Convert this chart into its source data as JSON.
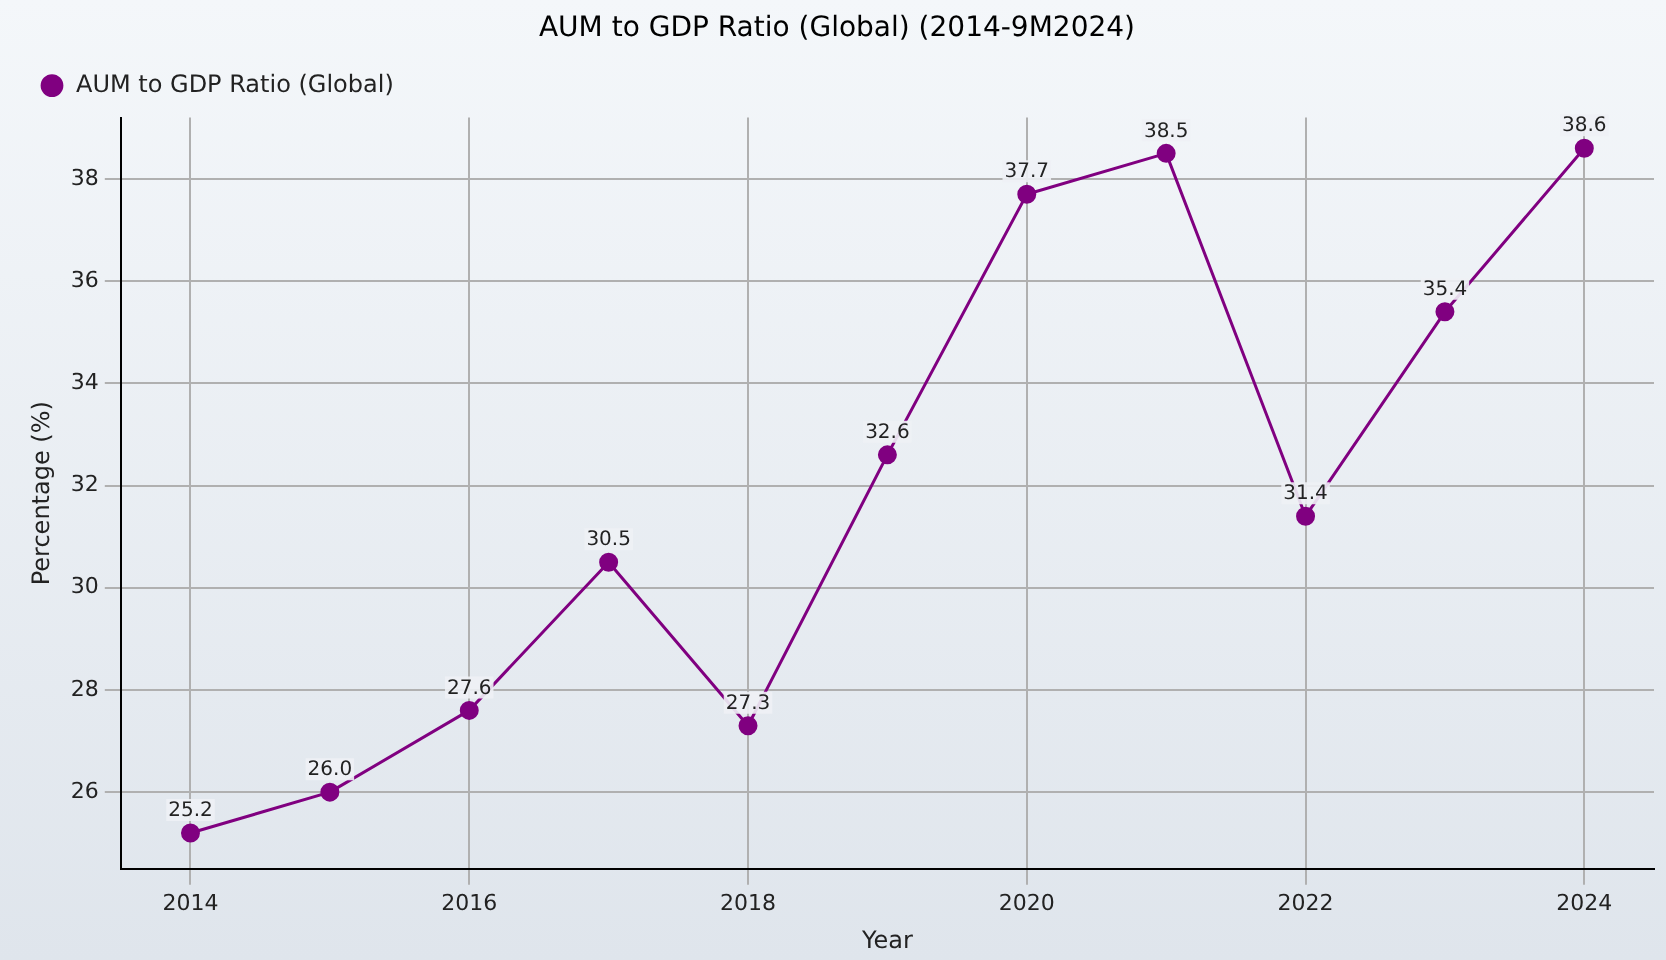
{
  "chart_data": {
    "type": "line",
    "title": "AUM to GDP Ratio (Global) (2014-9M2024)",
    "xlabel": "Year",
    "ylabel": "Percentage (%)",
    "x": [
      2014,
      2015,
      2016,
      2017,
      2018,
      2019,
      2020,
      2021,
      2022,
      2023,
      2024
    ],
    "series": [
      {
        "name": "AUM to GDP Ratio (Global)",
        "color": "#800080",
        "values": [
          25.2,
          26.0,
          27.6,
          30.5,
          27.3,
          32.6,
          37.7,
          38.5,
          31.4,
          35.4,
          38.6
        ],
        "value_labels": [
          "25.2",
          "26.0",
          "27.6",
          "30.5",
          "27.3",
          "32.6",
          "37.7",
          "38.5",
          "31.4",
          "35.4",
          "38.6"
        ]
      }
    ],
    "xlim": [
      2013.5,
      2024.5
    ],
    "xticks": [
      2014,
      2016,
      2018,
      2020,
      2022,
      2024
    ],
    "ylim": [
      24.5,
      39.2
    ],
    "yticks": [
      26,
      28,
      30,
      32,
      34,
      36,
      38
    ],
    "grid": true,
    "legend": "top left",
    "marker": "circle",
    "line_style": "solid"
  }
}
